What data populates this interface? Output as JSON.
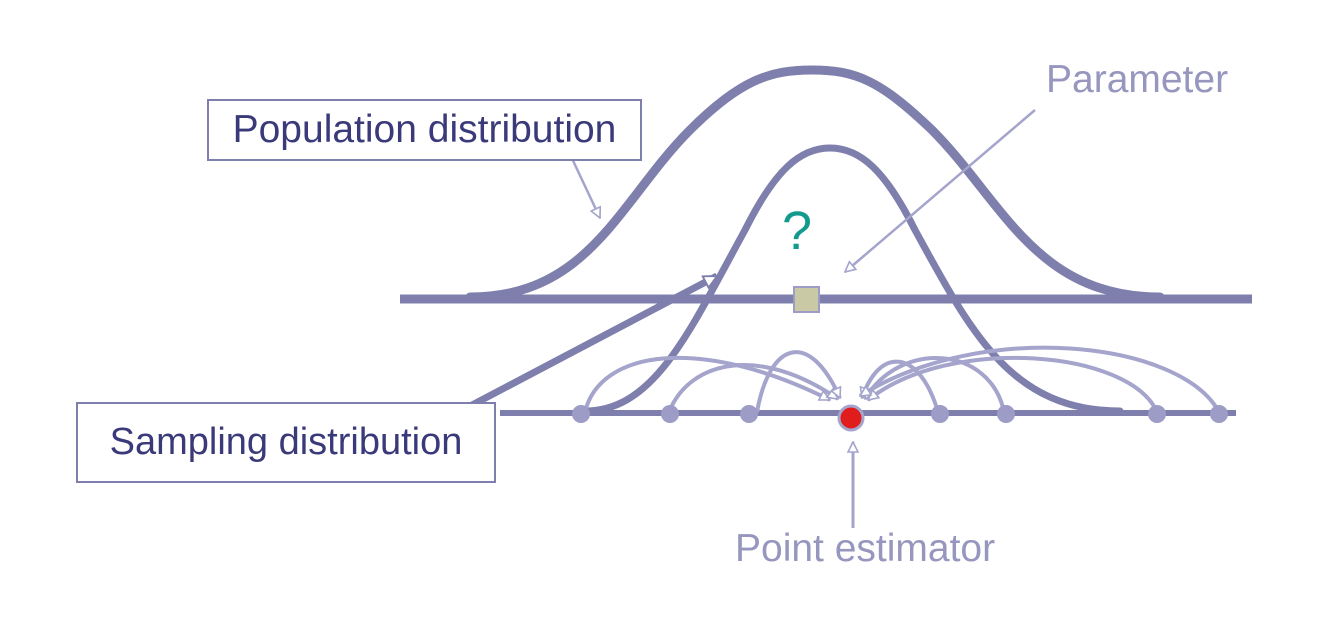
{
  "labels": {
    "population_distribution": "Population distribution",
    "sampling_distribution": "Sampling distribution",
    "parameter": "Parameter",
    "point_estimator": "Point estimator",
    "unknown_mark": "?"
  },
  "colors": {
    "curve": "#7f7fad",
    "box_border": "#7f7fad",
    "box_text": "#3a3a7a",
    "annotation_text": "#9696bf",
    "sample_point": "#9c9cc6",
    "sample_arrow": "#a4a4cc",
    "estimator_point": "#e01c1c",
    "parameter_marker": "#c9c9a6",
    "question_mark": "#139a8e"
  },
  "icons": {
    "parameter_marker": "square",
    "estimator_point": "filled-circle",
    "sample_points": "filled-circle"
  }
}
